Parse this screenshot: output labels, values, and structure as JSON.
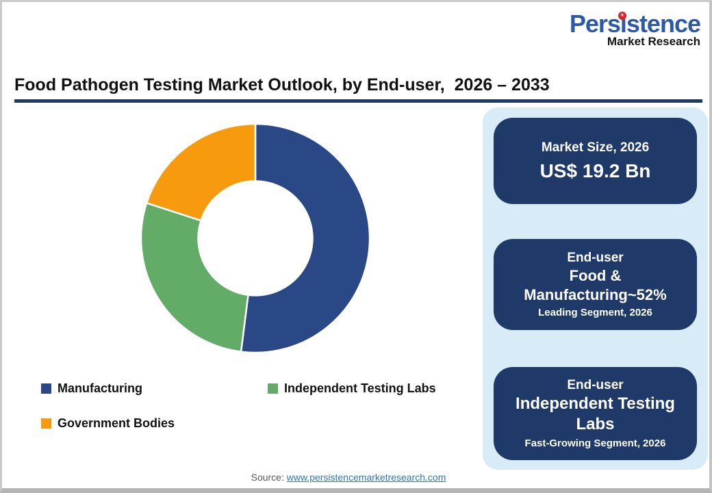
{
  "logo": {
    "brand": "Persistence",
    "sub": "Market Research",
    "dot_icon": "★",
    "brand_color": "#2E5AA5",
    "dot_color": "#D9232A"
  },
  "title": {
    "text": "Food Pathogen Testing Market Outlook, by End-user,  2026 – 2033",
    "underline_color": "#1F3864"
  },
  "chart_data": {
    "type": "pie",
    "subtype": "donut",
    "title": "Food Pathogen Testing Market Outlook, by End-user, 2026 – 2033",
    "categories": [
      "Manufacturing",
      "Independent Testing Labs",
      "Government Bodies"
    ],
    "values": [
      52,
      28,
      20
    ],
    "unit": "%",
    "colors": [
      "#2A4886",
      "#63AC67",
      "#F89A0E"
    ],
    "start_angle_deg": 0,
    "direction": "clockwise",
    "inner_radius_ratio": 0.5,
    "legend_position": "bottom"
  },
  "legend": {
    "items": [
      {
        "label": "Manufacturing",
        "color": "#2A4886"
      },
      {
        "label": "Independent Testing Labs",
        "color": "#63AC67"
      },
      {
        "label": "Government Bodies",
        "color": "#F89A0E"
      }
    ]
  },
  "panel": {
    "bg": "#D8ECF8",
    "card_bg": "#1F3A68",
    "cards": [
      {
        "line1": "Market Size, 2026",
        "line2": "US$ 19.2 Bn",
        "line3": ""
      },
      {
        "line1": "End-user",
        "line2": "Food & Manufacturing~52%",
        "line3": "Leading Segment, 2026"
      },
      {
        "line1": "End-user",
        "line2": "Independent Testing Labs",
        "line3": "Fast-Growing Segment, 2026"
      }
    ]
  },
  "footer": {
    "prefix": "Source: ",
    "link": "www.persistencemarketresearch.com"
  }
}
